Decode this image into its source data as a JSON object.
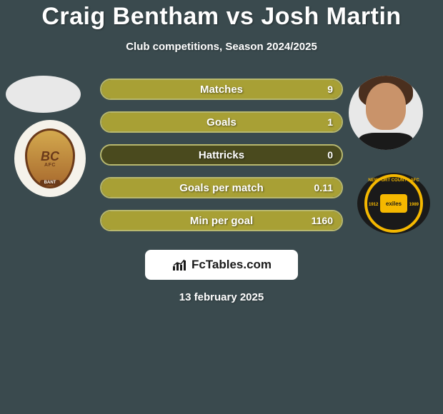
{
  "title": "Craig Bentham vs Josh Martin",
  "subtitle": "Club competitions, Season 2024/2025",
  "date": "13 february 2025",
  "footer": {
    "brand_text": "FcTables.com"
  },
  "colors": {
    "background": "#3a4a4e",
    "bar_olive": "#a8a035",
    "bar_olive_dark": "#4a4a1e",
    "bar_border": "#b8b86e",
    "text": "#ffffff"
  },
  "left_player": {
    "name": "Craig Bentham",
    "club_abbrev": "BC",
    "club_sub": "AFC",
    "club_banner": "BANT"
  },
  "right_player": {
    "name": "Josh Martin",
    "club_text": "exiles",
    "club_ring_top": "NEWPORT COUNTY AFC",
    "club_ring_left": "1912",
    "club_ring_right": "1989"
  },
  "stats": [
    {
      "label": "Matches",
      "left_raw": null,
      "right_raw": "9",
      "left_pct": 0,
      "right_pct": 100,
      "right_color": "#a8a035",
      "bg_color": "#a8a035"
    },
    {
      "label": "Goals",
      "left_raw": null,
      "right_raw": "1",
      "left_pct": 0,
      "right_pct": 100,
      "right_color": "#a8a035",
      "bg_color": "#a8a035"
    },
    {
      "label": "Hattricks",
      "left_raw": null,
      "right_raw": "0",
      "left_pct": 0,
      "right_pct": 0,
      "right_color": "#a8a035",
      "bg_color": "#4a4a1e"
    },
    {
      "label": "Goals per match",
      "left_raw": null,
      "right_raw": "0.11",
      "left_pct": 0,
      "right_pct": 100,
      "right_color": "#a8a035",
      "bg_color": "#a8a035"
    },
    {
      "label": "Min per goal",
      "left_raw": null,
      "right_raw": "1160",
      "left_pct": 0,
      "right_pct": 100,
      "right_color": "#a8a035",
      "bg_color": "#a8a035"
    }
  ]
}
